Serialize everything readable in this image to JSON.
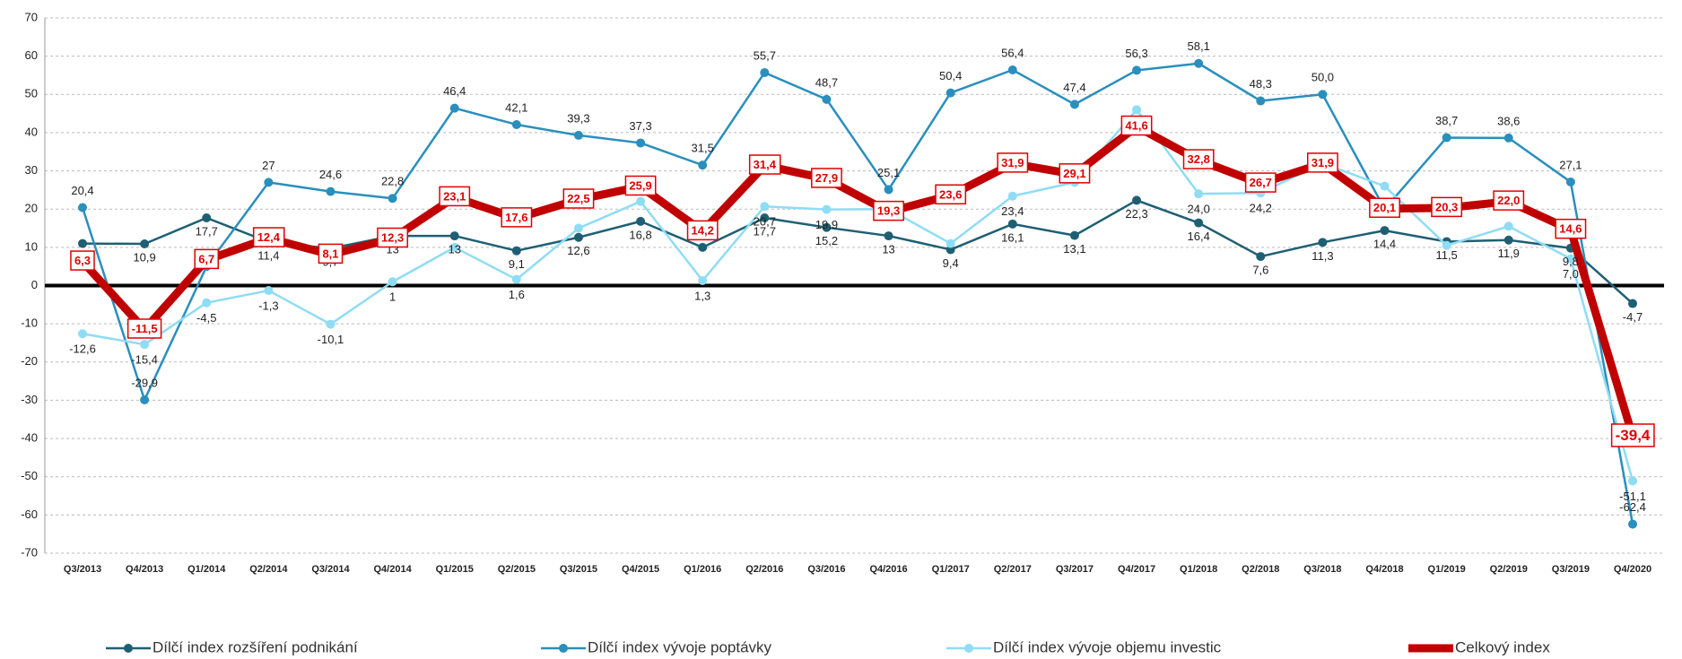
{
  "chart_data": {
    "type": "line",
    "categories": [
      "Q3/2013",
      "Q4/2013",
      "Q1/2014",
      "Q2/2014",
      "Q3/2014",
      "Q4/2014",
      "Q1/2015",
      "Q2/2015",
      "Q3/2015",
      "Q4/2015",
      "Q1/2016",
      "Q2/2016",
      "Q3/2016",
      "Q4/2016",
      "Q1/2017",
      "Q2/2017",
      "Q3/2017",
      "Q4/2017",
      "Q1/2018",
      "Q2/2018",
      "Q3/2018",
      "Q4/2018",
      "Q1/2019",
      "Q2/2019",
      "Q3/2019",
      "Q4/2020"
    ],
    "series": [
      {
        "name": "Dílčí index rozšíření podnikání",
        "color": "#1f5f73",
        "values": [
          11,
          10.9,
          17.7,
          11.4,
          9.7,
          13,
          13,
          9.1,
          12.6,
          16.8,
          10,
          17.7,
          15.2,
          13,
          9.4,
          16.1,
          13.1,
          22.3,
          16.4,
          7.6,
          11.3,
          14.4,
          11.5,
          11.9,
          9.8,
          -4.7
        ],
        "value_labels": [
          null,
          "10,9",
          "17,7",
          "11,4",
          "9,7",
          "13",
          "13",
          "9,1",
          "12,6",
          "16,8",
          null,
          "17,7",
          "15,2",
          "13",
          "9,4",
          "16,1",
          "13,1",
          "22,3",
          "16,4",
          "7,6",
          "11,3",
          "14,4",
          "11,5",
          "11,9",
          "9,8",
          "-4,7"
        ]
      },
      {
        "name": "Dílčí index vývoje poptávky",
        "color": "#2a8fbd",
        "values": [
          20.4,
          -29.9,
          5,
          27,
          24.6,
          22.8,
          46.4,
          42.1,
          39.3,
          37.3,
          31.5,
          55.7,
          48.7,
          25.1,
          50.4,
          56.4,
          47.4,
          56.3,
          58.1,
          48.3,
          50.0,
          20,
          38.7,
          38.6,
          27.1,
          -62.4
        ],
        "value_labels": [
          "20,4",
          "-29,9",
          null,
          "27",
          "24,6",
          "22,8",
          "46,4",
          "42,1",
          "39,3",
          "37,3",
          "31,5",
          "55,7",
          "48,7",
          "25,1",
          "50,4",
          "56,4",
          "47,4",
          "56,3",
          "58,1",
          "48,3",
          "50,0",
          null,
          "38,7",
          "38,6",
          "27,1",
          "-62,4"
        ]
      },
      {
        "name": "Dílčí index vývoje objemu investic",
        "color": "#8fdcf5",
        "values": [
          -12.6,
          -15.4,
          -4.5,
          -1.3,
          -10.1,
          1,
          10,
          1.6,
          15,
          22,
          1.3,
          20.7,
          19.9,
          20,
          11,
          23.4,
          27,
          46,
          24.0,
          24.2,
          32,
          26,
          10.5,
          15.5,
          7.0,
          -51.1
        ],
        "value_labels": [
          "-12,6",
          "-15,4",
          "-4,5",
          "-1,3",
          "-10,1",
          "1",
          null,
          "1,6",
          null,
          null,
          "1,3",
          "20,7",
          "19,9",
          null,
          null,
          "23,4",
          null,
          null,
          "24,0",
          "24,2",
          null,
          null,
          null,
          null,
          "7,0",
          "-51,1"
        ]
      },
      {
        "name": "Celkový index",
        "color": "#c00000",
        "values": [
          6.3,
          -11.5,
          6.7,
          12.4,
          8.1,
          12.3,
          23.1,
          17.6,
          22.5,
          25.9,
          14.2,
          31.4,
          27.9,
          19.3,
          23.6,
          31.9,
          29.1,
          41.6,
          32.8,
          26.7,
          31.9,
          20.1,
          20.3,
          22.0,
          14.6,
          -39.4
        ],
        "value_labels": [
          "6,3",
          "-11,5",
          "6,7",
          "12,4",
          "8,1",
          "12,3",
          "23,1",
          "17,6",
          "22,5",
          "25,9",
          "14,2",
          "31,4",
          "27,9",
          "19,3",
          "23,6",
          "31,9",
          "29,1",
          "41,6",
          "32,8",
          "26,7",
          "31,9",
          "20,1",
          "20,3",
          "22,0",
          "14,6",
          "-39,4"
        ]
      }
    ],
    "ylim": [
      -70,
      70
    ],
    "yticks": [
      -70,
      -60,
      -50,
      -40,
      -30,
      -20,
      -10,
      0,
      10,
      20,
      30,
      40,
      50,
      60,
      70
    ],
    "grid": true,
    "zero_line": true,
    "legend": "bottom"
  }
}
